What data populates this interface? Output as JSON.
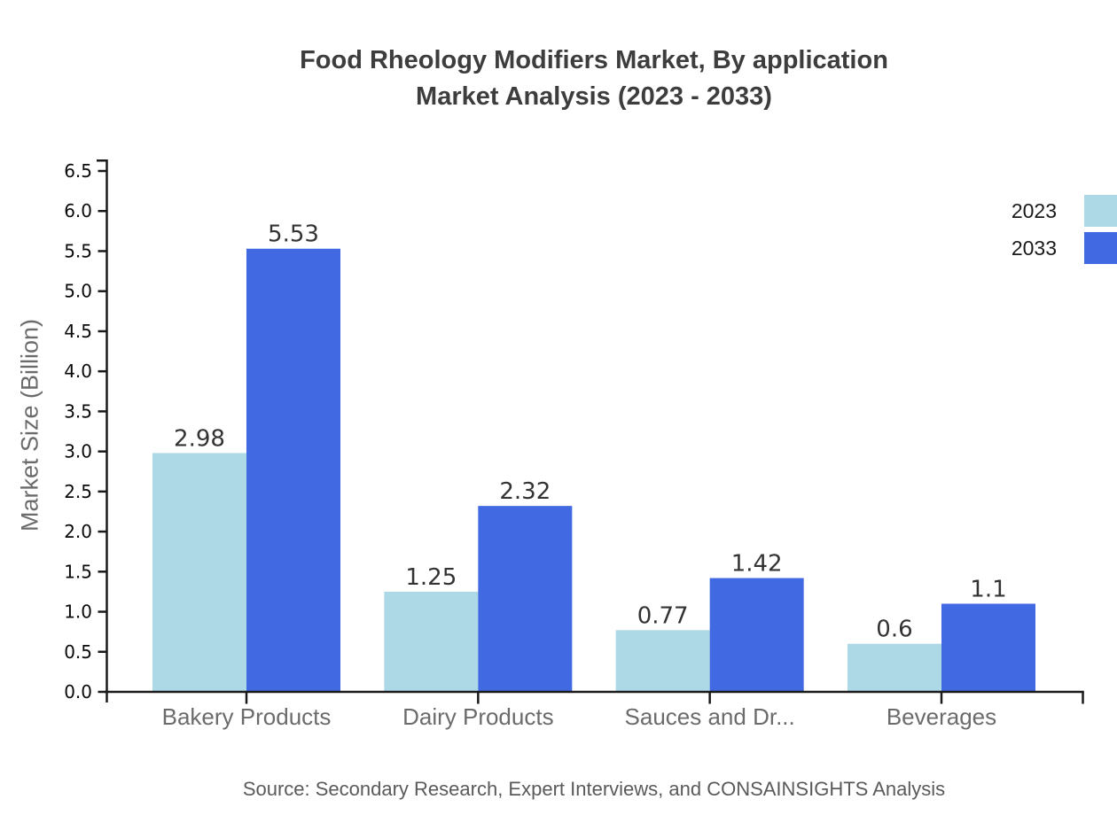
{
  "title_line1": "Food Rheology Modifiers Market, By application",
  "title_line2": "Market Analysis (2023 - 2033)",
  "source": "Source: Secondary Research, Expert Interviews, and CONSAINSIGHTS Analysis",
  "colors": {
    "series_2023": "#ADD8E6",
    "series_2033": "#4169E1",
    "axis": "#1a1a1a",
    "title": "#3d3d3d",
    "category_label": "#6b6b6b",
    "value_label": "#333333"
  },
  "chart_data": {
    "type": "bar",
    "title": "Food Rheology Modifiers Market, By application Market Analysis (2023 - 2033)",
    "categories": [
      "Bakery Products",
      "Dairy Products",
      "Sauces and Dr...",
      "Beverages"
    ],
    "series": [
      {
        "name": "2023",
        "color": "#ADD8E6",
        "values": [
          2.98,
          1.25,
          0.77,
          0.6
        ],
        "labels": [
          "2.98",
          "1.25",
          "0.77",
          "0.6"
        ]
      },
      {
        "name": "2033",
        "color": "#4169E1",
        "values": [
          5.53,
          2.32,
          1.42,
          1.1
        ],
        "labels": [
          "5.53",
          "2.32",
          "1.42",
          "1.1"
        ]
      }
    ],
    "xlabel": "",
    "ylabel": "Market Size (Billion)",
    "ylim": [
      0.0,
      6.5
    ],
    "ytick_step": 0.5,
    "ytick_labels": [
      "0.0",
      "0.5",
      "1.0",
      "1.5",
      "2.0",
      "2.5",
      "3.0",
      "3.5",
      "4.0",
      "4.5",
      "5.0",
      "5.5",
      "6.0",
      "6.5"
    ],
    "grid": false,
    "legend_position": "top-right",
    "value_labels_shown": true
  }
}
